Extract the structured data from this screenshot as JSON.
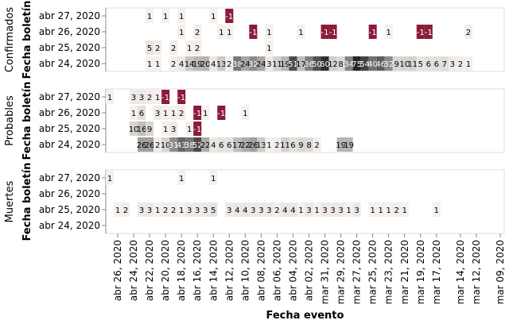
{
  "chart_data": {
    "type": "heatmap",
    "xlabel": "Fecha evento",
    "ylabel": "Fecha boletín",
    "x_dates_desc": [
      "abr 27, 2020",
      "abr 26, 2020",
      "abr 25, 2020",
      "abr 24, 2020",
      "abr 23, 2020",
      "abr 22, 2020",
      "abr 21, 2020",
      "abr 20, 2020",
      "abr 19, 2020",
      "abr 18, 2020",
      "abr 17, 2020",
      "abr 16, 2020",
      "abr 15, 2020",
      "abr 14, 2020",
      "abr 13, 2020",
      "abr 12, 2020",
      "abr 11, 2020",
      "abr 10, 2020",
      "abr 09, 2020",
      "abr 08, 2020",
      "abr 07, 2020",
      "abr 06, 2020",
      "abr 05, 2020",
      "abr 04, 2020",
      "abr 03, 2020",
      "abr 02, 2020",
      "abr 01, 2020",
      "mar 31, 2020",
      "mar 30, 2020",
      "mar 29, 2020",
      "mar 28, 2020",
      "mar 27, 2020",
      "mar 26, 2020",
      "mar 25, 2020",
      "mar 24, 2020",
      "mar 23, 2020",
      "mar 22, 2020",
      "mar 21, 2020",
      "mar 20, 2020",
      "mar 19, 2020",
      "mar 18, 2020",
      "mar 17, 2020",
      "mar 16, 2020",
      "mar 15, 2020",
      "mar 14, 2020",
      "mar 13, 2020",
      "mar 12, 2020",
      "mar 11, 2020",
      "mar 10, 2020",
      "mar 09, 2020"
    ],
    "x_tick_labels": [
      "abr 26, 2020",
      "abr 24, 2020",
      "abr 22, 2020",
      "abr 20, 2020",
      "abr 18, 2020",
      "abr 16, 2020",
      "abr 14, 2020",
      "abr 12, 2020",
      "abr 10, 2020",
      "abr 08, 2020",
      "abr 06, 2020",
      "abr 04, 2020",
      "abr 02, 2020",
      "mar 31, 2020",
      "mar 29, 2020",
      "mar 27, 2020",
      "mar 25, 2020",
      "mar 23, 2020",
      "mar 21, 2020",
      "mar 19, 2020",
      "mar 17, 2020",
      "mar 14, 2020",
      "mar 12, 2020",
      "mar 09, 2020"
    ],
    "y_categories": [
      "abr 27, 2020",
      "abr 26, 2020",
      "abr 25, 2020",
      "abr 24, 2020"
    ],
    "color_scale": {
      "min": -1,
      "max": 63,
      "negative": "#8c1a3a",
      "zero": "#f5f0ec",
      "high": "#252525"
    },
    "facets": [
      {
        "name": "Confirmados",
        "rows": [
          [
            null,
            null,
            null,
            null,
            null,
            1,
            null,
            1,
            null,
            1,
            null,
            null,
            null,
            1,
            null,
            -1,
            null,
            null,
            null,
            null,
            null,
            null,
            null,
            null,
            null,
            null,
            null,
            null,
            null,
            null,
            null,
            null,
            null,
            null,
            null,
            null,
            null,
            null,
            null,
            null,
            null,
            null,
            null,
            null,
            null,
            null,
            null,
            null,
            null,
            null
          ],
          [
            null,
            null,
            null,
            null,
            null,
            null,
            null,
            null,
            null,
            1,
            null,
            2,
            null,
            null,
            1,
            1,
            null,
            null,
            -1,
            null,
            1,
            null,
            null,
            null,
            1,
            null,
            null,
            -1,
            -1,
            null,
            null,
            null,
            null,
            -1,
            null,
            1,
            null,
            null,
            null,
            -1,
            -1,
            null,
            null,
            null,
            null,
            2,
            null,
            null,
            null,
            null
          ],
          [
            null,
            null,
            null,
            null,
            null,
            5,
            2,
            null,
            2,
            null,
            1,
            2,
            null,
            null,
            null,
            null,
            null,
            null,
            null,
            null,
            1,
            null,
            null,
            null,
            null,
            null,
            null,
            null,
            null,
            null,
            null,
            null,
            null,
            null,
            null,
            null,
            null,
            null,
            null,
            null,
            null,
            null,
            null,
            null,
            null,
            null,
            null,
            null,
            null,
            null
          ],
          [
            null,
            null,
            null,
            null,
            null,
            1,
            1,
            null,
            2,
            4,
            14,
            19,
            20,
            4,
            13,
            2,
            38,
            24,
            32,
            24,
            3,
            11,
            19,
            51,
            17,
            36,
            50,
            60,
            12,
            8,
            34,
            75,
            54,
            40,
            46,
            32,
            9,
            10,
            11,
            5,
            6,
            6,
            7,
            3,
            2,
            1,
            null,
            null,
            null,
            null
          ]
        ]
      },
      {
        "name": "Probables",
        "rows": [
          [
            1,
            null,
            null,
            3,
            3,
            2,
            1,
            -1,
            null,
            -1,
            null,
            null,
            null,
            null,
            null,
            null,
            null,
            null,
            null,
            null,
            null,
            null,
            null,
            null,
            null,
            null,
            null,
            null,
            null,
            null,
            null,
            null,
            null,
            null,
            null,
            null,
            null,
            null,
            null,
            null,
            null,
            null,
            null,
            null,
            null,
            null,
            null,
            null,
            null,
            null
          ],
          [
            null,
            null,
            null,
            1,
            6,
            null,
            3,
            1,
            1,
            2,
            null,
            -1,
            1,
            null,
            -1,
            null,
            null,
            1,
            null,
            null,
            null,
            null,
            null,
            null,
            null,
            null,
            null,
            null,
            null,
            null,
            null,
            null,
            null,
            null,
            null,
            null,
            null,
            null,
            null,
            null,
            null,
            null,
            null,
            null,
            null,
            null,
            null,
            null,
            null,
            null
          ],
          [
            null,
            null,
            null,
            10,
            16,
            9,
            null,
            1,
            3,
            null,
            1,
            -1,
            null,
            null,
            null,
            null,
            null,
            null,
            null,
            null,
            null,
            null,
            null,
            null,
            null,
            null,
            null,
            null,
            null,
            null,
            null,
            null,
            null,
            null,
            null,
            null,
            null,
            null,
            null,
            null,
            null,
            null,
            null,
            null,
            null,
            null,
            null,
            null,
            null,
            null
          ],
          [
            null,
            null,
            null,
            null,
            26,
            26,
            2,
            10,
            31,
            43,
            38,
            52,
            22,
            4,
            6,
            6,
            17,
            22,
            26,
            13,
            1,
            2,
            11,
            6,
            9,
            8,
            2,
            null,
            null,
            19,
            19,
            null,
            null,
            null,
            null,
            null,
            null,
            null,
            null,
            null,
            null,
            null,
            null,
            null,
            null,
            null,
            null,
            null,
            null,
            null
          ]
        ]
      },
      {
        "name": "Muertes",
        "rows": [
          [
            1,
            null,
            null,
            null,
            null,
            null,
            null,
            null,
            null,
            1,
            null,
            null,
            null,
            1,
            null,
            null,
            null,
            null,
            null,
            null,
            null,
            null,
            null,
            null,
            null,
            null,
            null,
            null,
            null,
            null,
            null,
            null,
            null,
            null,
            null,
            null,
            null,
            null,
            null,
            null,
            null,
            null,
            null,
            null,
            null,
            null,
            null,
            null,
            null,
            null
          ],
          [
            null,
            null,
            null,
            null,
            null,
            null,
            null,
            null,
            null,
            null,
            null,
            null,
            null,
            null,
            null,
            null,
            null,
            null,
            null,
            null,
            null,
            null,
            null,
            null,
            null,
            null,
            null,
            null,
            null,
            null,
            null,
            null,
            null,
            null,
            null,
            null,
            null,
            null,
            null,
            null,
            null,
            null,
            null,
            null,
            null,
            null,
            null,
            null,
            null,
            null
          ],
          [
            null,
            1,
            2,
            null,
            3,
            3,
            1,
            2,
            2,
            1,
            3,
            3,
            3,
            5,
            null,
            3,
            4,
            4,
            3,
            3,
            3,
            2,
            4,
            4,
            1,
            3,
            1,
            3,
            3,
            3,
            1,
            3,
            null,
            1,
            1,
            1,
            2,
            1,
            null,
            null,
            null,
            1,
            null,
            null,
            null,
            null,
            null,
            null,
            null,
            null
          ],
          [
            null,
            null,
            null,
            null,
            null,
            null,
            null,
            null,
            null,
            null,
            null,
            null,
            null,
            null,
            null,
            null,
            null,
            null,
            null,
            null,
            null,
            null,
            null,
            null,
            null,
            null,
            null,
            null,
            null,
            null,
            null,
            null,
            null,
            null,
            null,
            null,
            null,
            null,
            null,
            null,
            null,
            null,
            null,
            null,
            null,
            null,
            null,
            null,
            null,
            null
          ]
        ]
      }
    ]
  }
}
